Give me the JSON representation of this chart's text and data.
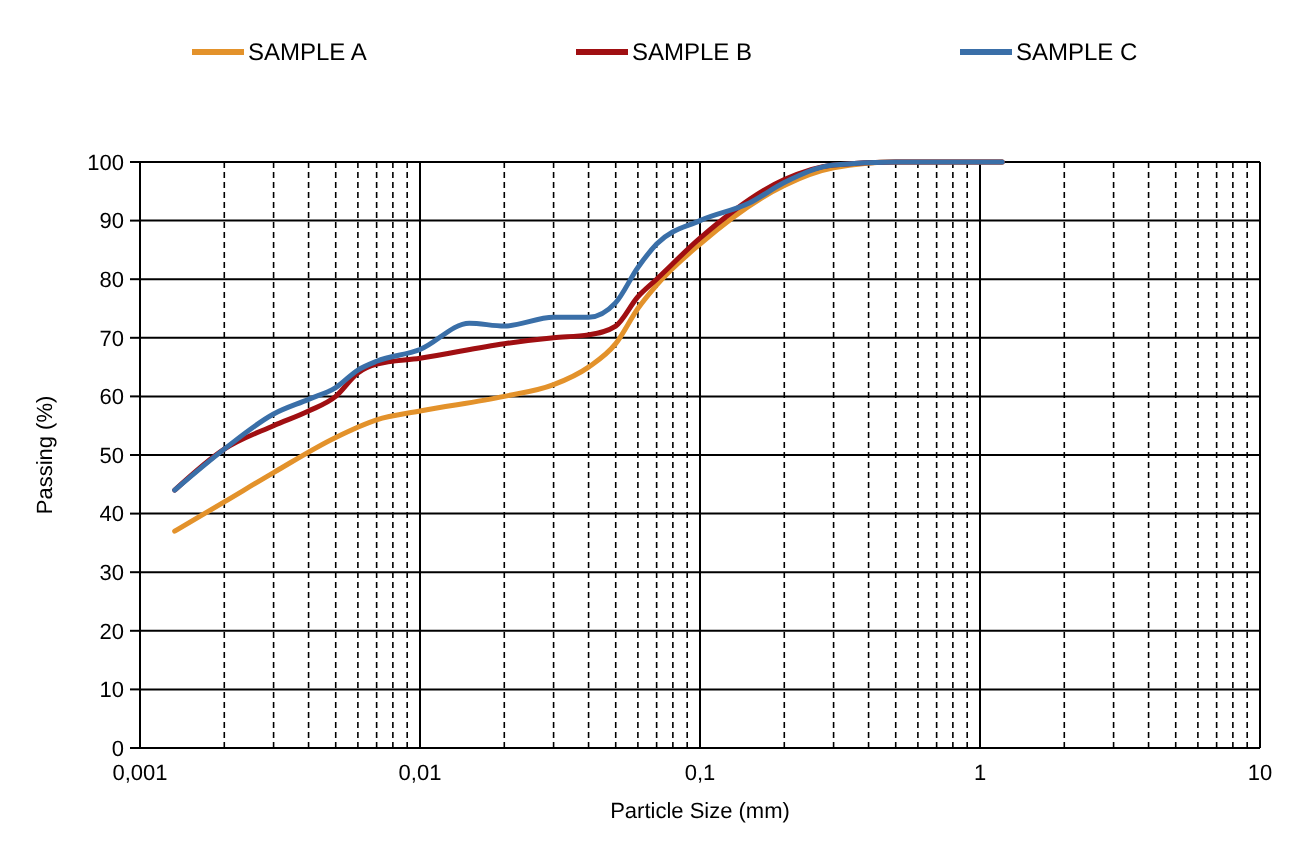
{
  "chart_data": {
    "type": "line",
    "xlabel": "Particle Size (mm)",
    "ylabel": "Passing (%)",
    "log": "x",
    "xlim": [
      0.001,
      10
    ],
    "ylim": [
      0,
      100
    ],
    "xticks": [
      {
        "value": 0.001,
        "label": "0,001"
      },
      {
        "value": 0.002,
        "label": null
      },
      {
        "value": 0.003,
        "label": null
      },
      {
        "value": 0.004,
        "label": null
      },
      {
        "value": 0.005,
        "label": null
      },
      {
        "value": 0.006,
        "label": null
      },
      {
        "value": 0.007,
        "label": null
      },
      {
        "value": 0.008,
        "label": null
      },
      {
        "value": 0.009,
        "label": null
      },
      {
        "value": 0.01,
        "label": "0,01"
      },
      {
        "value": 0.02,
        "label": null
      },
      {
        "value": 0.03,
        "label": null
      },
      {
        "value": 0.04,
        "label": null
      },
      {
        "value": 0.05,
        "label": null
      },
      {
        "value": 0.06,
        "label": null
      },
      {
        "value": 0.07,
        "label": null
      },
      {
        "value": 0.08,
        "label": null
      },
      {
        "value": 0.09,
        "label": null
      },
      {
        "value": 0.1,
        "label": "0,1"
      },
      {
        "value": 0.2,
        "label": null
      },
      {
        "value": 0.3,
        "label": null
      },
      {
        "value": 0.4,
        "label": null
      },
      {
        "value": 0.5,
        "label": null
      },
      {
        "value": 0.6,
        "label": null
      },
      {
        "value": 0.7,
        "label": null
      },
      {
        "value": 0.8,
        "label": null
      },
      {
        "value": 0.9,
        "label": null
      },
      1,
      {
        "value": 2,
        "label": null
      },
      {
        "value": 3,
        "label": null
      },
      {
        "value": 4,
        "label": null
      },
      {
        "value": 5,
        "label": null
      },
      {
        "value": 6,
        "label": null
      },
      {
        "value": 7,
        "label": null
      },
      {
        "value": 8,
        "label": null
      },
      {
        "value": 9,
        "label": null
      },
      10
    ],
    "yticks": [
      0,
      10,
      20,
      30,
      40,
      50,
      60,
      70,
      80,
      90,
      100
    ],
    "grid": true,
    "legend": "top",
    "marker": "none",
    "series": [
      {
        "name": "SAMPLE A",
        "color": "#e3922b",
        "x": [
          0.00133,
          0.002,
          0.003,
          0.005,
          0.007,
          0.01,
          0.02,
          0.03,
          0.04,
          0.05,
          0.06,
          0.07,
          0.1,
          0.2,
          0.3,
          0.5,
          1,
          1.2
        ],
        "values": [
          37,
          42,
          47,
          53,
          56,
          57.5,
          60,
          62,
          65,
          69,
          75,
          79,
          86,
          96,
          99,
          100,
          100,
          100
        ]
      },
      {
        "name": "SAMPLE B",
        "color": "#a00f12",
        "x": [
          0.00133,
          0.002,
          0.003,
          0.004,
          0.005,
          0.006,
          0.007,
          0.01,
          0.02,
          0.03,
          0.04,
          0.05,
          0.06,
          0.07,
          0.1,
          0.2,
          0.3,
          0.5,
          1.2
        ],
        "values": [
          44,
          51,
          55,
          57.5,
          60,
          64,
          65.5,
          66.5,
          69,
          70,
          70.5,
          72,
          77,
          80,
          87,
          97,
          99.5,
          100,
          100
        ]
      },
      {
        "name": "SAMPLE C",
        "color": "#3a6fa8",
        "x": [
          0.00133,
          0.002,
          0.003,
          0.004,
          0.005,
          0.006,
          0.007,
          0.01,
          0.015,
          0.02,
          0.03,
          0.04,
          0.05,
          0.06,
          0.07,
          0.1,
          0.15,
          0.2,
          0.3,
          0.5,
          1.2
        ],
        "values": [
          44,
          51,
          57,
          59.5,
          61.5,
          64.5,
          66,
          68,
          72.5,
          72,
          73.5,
          73.5,
          76,
          82,
          86,
          90,
          93,
          96.5,
          99.5,
          100,
          100
        ]
      }
    ]
  }
}
